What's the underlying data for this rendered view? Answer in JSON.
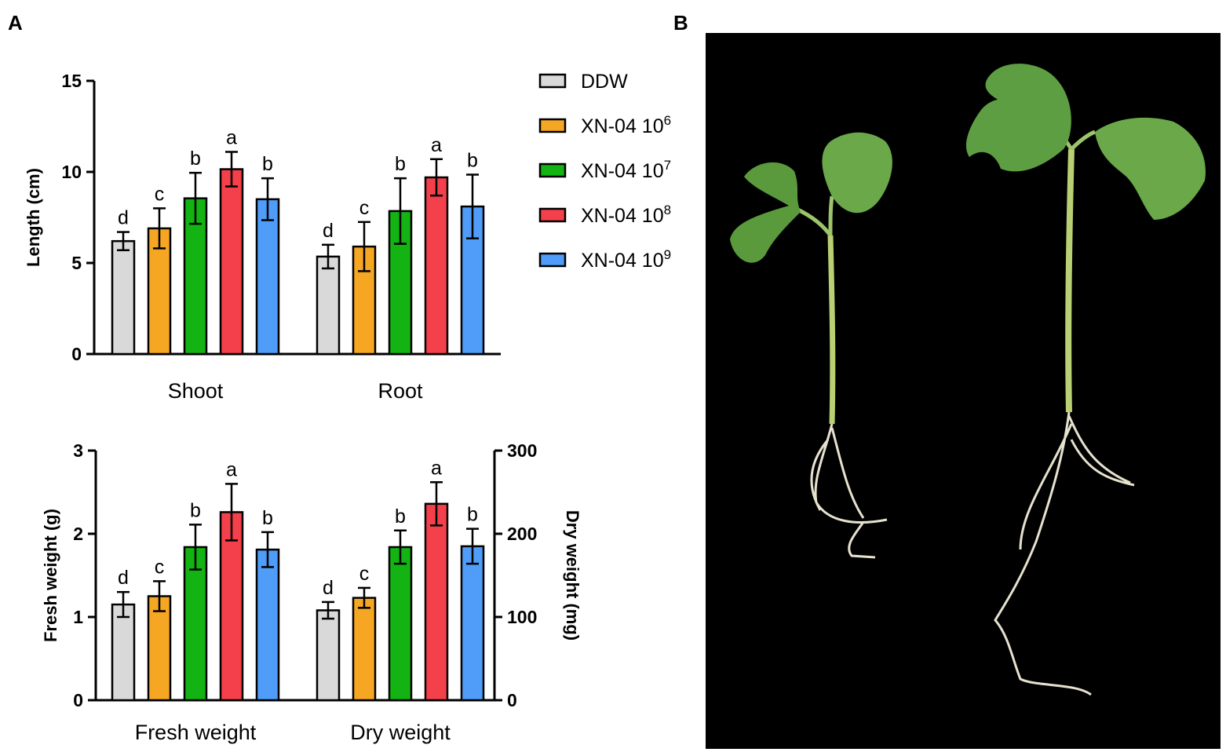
{
  "panels": {
    "a_label": "A",
    "b_label": "B"
  },
  "legend": [
    {
      "label": "DDW",
      "sup": "",
      "color": "#d9d9d9"
    },
    {
      "label": "XN-04 10",
      "sup": "6",
      "color": "#f5a623"
    },
    {
      "label": "XN-04 10",
      "sup": "7",
      "color": "#12b312"
    },
    {
      "label": "XN-04 10",
      "sup": "8",
      "color": "#f4404a"
    },
    {
      "label": "XN-04 10",
      "sup": "9",
      "color": "#4f9cf9"
    }
  ],
  "chart_data": [
    {
      "type": "bar",
      "ylabel": "Length (cm)",
      "ylim": [
        0,
        15
      ],
      "yticks": [
        "0",
        "5",
        "10",
        "15"
      ],
      "categories": [
        "Shoot",
        "Root"
      ],
      "series": [
        {
          "name": "DDW",
          "values": [
            6.2,
            5.35
          ],
          "errors": [
            0.5,
            0.65
          ],
          "letters": [
            "d",
            "d"
          ]
        },
        {
          "name": "XN-04 10^6",
          "values": [
            6.9,
            5.9
          ],
          "errors": [
            1.1,
            1.35
          ],
          "letters": [
            "c",
            "c"
          ]
        },
        {
          "name": "XN-04 10^7",
          "values": [
            8.55,
            7.85
          ],
          "errors": [
            1.4,
            1.8
          ],
          "letters": [
            "b",
            "b"
          ]
        },
        {
          "name": "XN-04 10^8",
          "values": [
            10.15,
            9.7
          ],
          "errors": [
            0.95,
            1.0
          ],
          "letters": [
            "a",
            "a"
          ]
        },
        {
          "name": "XN-04 10^9",
          "values": [
            8.5,
            8.1
          ],
          "errors": [
            1.15,
            1.75
          ],
          "letters": [
            "b",
            "b"
          ]
        }
      ]
    },
    {
      "type": "bar",
      "ylabel": "Fresh weight (g)",
      "y2label": "Dry weight (mg)",
      "ylim": [
        0,
        3
      ],
      "y2lim": [
        0,
        300
      ],
      "yticks": [
        "0",
        "1",
        "2",
        "3"
      ],
      "y2ticks": [
        "0",
        "100",
        "200",
        "300"
      ],
      "categories": [
        "Fresh weight",
        "Dry weight"
      ],
      "series": [
        {
          "name": "DDW",
          "values": [
            1.15,
            108
          ],
          "errors": [
            0.15,
            10
          ],
          "letters": [
            "d",
            "d"
          ]
        },
        {
          "name": "XN-04 10^6",
          "values": [
            1.25,
            123
          ],
          "errors": [
            0.18,
            12
          ],
          "letters": [
            "c",
            "c"
          ]
        },
        {
          "name": "XN-04 10^7",
          "values": [
            1.84,
            184
          ],
          "errors": [
            0.27,
            20
          ],
          "letters": [
            "b",
            "b"
          ]
        },
        {
          "name": "XN-04 10^8",
          "values": [
            2.26,
            236
          ],
          "errors": [
            0.34,
            26
          ],
          "letters": [
            "a",
            "a"
          ]
        },
        {
          "name": "XN-04 10^9",
          "values": [
            1.81,
            185
          ],
          "errors": [
            0.21,
            21
          ],
          "letters": [
            "b",
            "b"
          ]
        }
      ]
    }
  ]
}
